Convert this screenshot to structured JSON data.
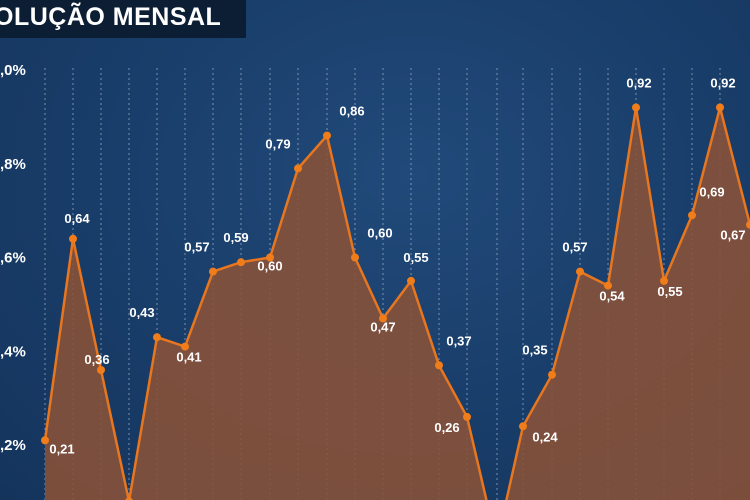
{
  "chart_data": {
    "type": "area",
    "title": "OLUÇÃO MENSAL",
    "y_ticks": [
      ",2%",
      ",4%",
      ",6%",
      ",8%",
      ",0%"
    ],
    "y_tick_values": [
      0.2,
      0.4,
      0.6,
      0.8,
      1.0
    ],
    "ylim": [
      0.05,
      1.0
    ],
    "grid": "vertical dotted",
    "colors": {
      "fill": "#8a5238",
      "line": "#e8761e",
      "marker": "#f07d1a",
      "text": "#ffffff"
    },
    "series": [
      {
        "values": [
          0.21,
          0.64,
          0.36,
          0.08,
          0.43,
          0.41,
          0.57,
          0.59,
          0.6,
          0.79,
          0.86,
          0.6,
          0.47,
          0.55,
          0.37,
          0.26,
          0.05,
          0.05,
          0.24,
          0.35,
          0.57,
          0.54,
          0.92,
          0.55,
          0.69,
          0.92,
          0.67
        ],
        "labels": [
          "0,21",
          "0,64",
          "0,36",
          "",
          "0,43",
          "0,41",
          "0,57",
          "0,59",
          "0,60",
          "0,79",
          "0,86",
          "0,60",
          "0,47",
          "0,55",
          "0,37",
          "0,26",
          "",
          "",
          "0,24",
          "0,35",
          "0,57",
          "0,54",
          "0,92",
          "0,55",
          "0,69",
          "0,92",
          "0,67"
        ]
      }
    ]
  }
}
